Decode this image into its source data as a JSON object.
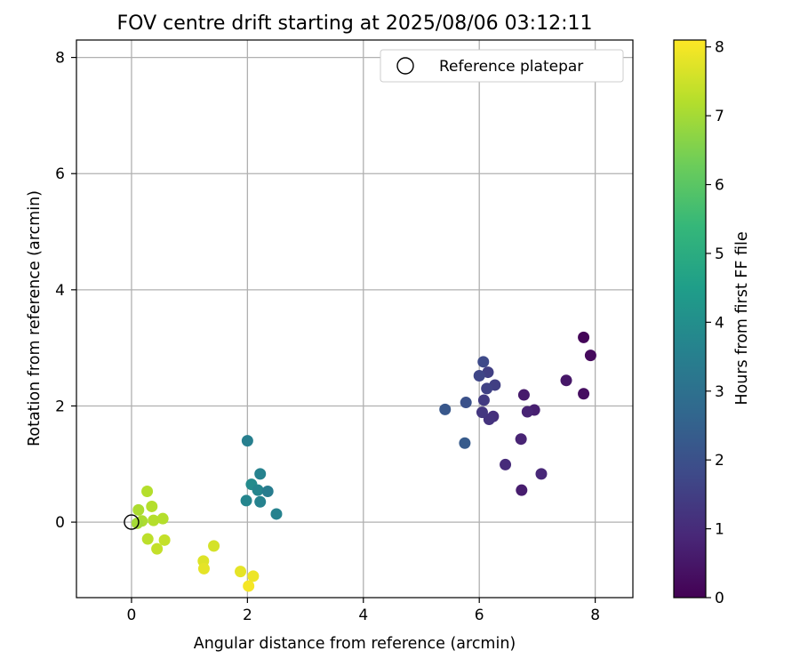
{
  "chart_data": {
    "type": "scatter",
    "title": "FOV centre drift starting at 2025/08/06 03:12:11",
    "xlabel": "Angular distance from reference (arcmin)",
    "ylabel": "Rotation from reference (arcmin)",
    "xlim": [
      -0.95,
      8.65
    ],
    "ylim": [
      -1.3,
      8.3
    ],
    "xticks": [
      0,
      2,
      4,
      6,
      8
    ],
    "yticks": [
      0,
      2,
      4,
      6,
      8
    ],
    "grid": true,
    "legend": {
      "position": "top-right",
      "entries": [
        "Reference platepar"
      ]
    },
    "reference_point": {
      "label": "Reference platepar",
      "x": 0,
      "y": 0,
      "marker": "open-circle"
    },
    "colorbar": {
      "label": "Hours from first FF file",
      "colormap": "viridis",
      "range": [
        0,
        8.1
      ],
      "ticks": [
        0,
        1,
        2,
        3,
        4,
        5,
        6,
        7,
        8
      ]
    },
    "points": [
      {
        "x": 7.8,
        "y": 3.18,
        "c": 0.1
      },
      {
        "x": 7.92,
        "y": 2.87,
        "c": 0.2
      },
      {
        "x": 7.8,
        "y": 2.21,
        "c": 0.3
      },
      {
        "x": 7.5,
        "y": 2.44,
        "c": 0.5
      },
      {
        "x": 6.77,
        "y": 2.19,
        "c": 0.6
      },
      {
        "x": 6.95,
        "y": 1.93,
        "c": 0.7
      },
      {
        "x": 6.83,
        "y": 1.9,
        "c": 0.8
      },
      {
        "x": 6.72,
        "y": 1.43,
        "c": 0.8
      },
      {
        "x": 6.73,
        "y": 0.55,
        "c": 0.65
      },
      {
        "x": 7.07,
        "y": 0.83,
        "c": 0.9
      },
      {
        "x": 6.45,
        "y": 0.99,
        "c": 1.0
      },
      {
        "x": 6.24,
        "y": 1.82,
        "c": 1.1
      },
      {
        "x": 6.17,
        "y": 1.77,
        "c": 1.2
      },
      {
        "x": 6.05,
        "y": 1.89,
        "c": 1.3
      },
      {
        "x": 6.08,
        "y": 2.1,
        "c": 1.4
      },
      {
        "x": 6.27,
        "y": 2.36,
        "c": 1.5
      },
      {
        "x": 6.13,
        "y": 2.3,
        "c": 1.6
      },
      {
        "x": 6.15,
        "y": 2.58,
        "c": 1.5
      },
      {
        "x": 6.0,
        "y": 2.52,
        "c": 1.7
      },
      {
        "x": 6.07,
        "y": 2.76,
        "c": 1.8
      },
      {
        "x": 5.77,
        "y": 2.06,
        "c": 2.0
      },
      {
        "x": 5.41,
        "y": 1.94,
        "c": 2.2
      },
      {
        "x": 5.75,
        "y": 1.36,
        "c": 2.3
      },
      {
        "x": 2.0,
        "y": 1.4,
        "c": 3.5
      },
      {
        "x": 2.22,
        "y": 0.83,
        "c": 3.6
      },
      {
        "x": 2.07,
        "y": 0.65,
        "c": 3.9
      },
      {
        "x": 2.18,
        "y": 0.55,
        "c": 3.7
      },
      {
        "x": 2.35,
        "y": 0.53,
        "c": 3.4
      },
      {
        "x": 1.98,
        "y": 0.37,
        "c": 3.7
      },
      {
        "x": 2.22,
        "y": 0.35,
        "c": 3.6
      },
      {
        "x": 2.5,
        "y": 0.14,
        "c": 3.6
      },
      {
        "x": 0.27,
        "y": 0.53,
        "c": 7.2
      },
      {
        "x": 0.35,
        "y": 0.27,
        "c": 7.2
      },
      {
        "x": 0.12,
        "y": 0.21,
        "c": 7.1
      },
      {
        "x": 0.54,
        "y": 0.06,
        "c": 7.2
      },
      {
        "x": 0.38,
        "y": 0.03,
        "c": 7.2
      },
      {
        "x": 0.18,
        "y": 0.02,
        "c": 7.1
      },
      {
        "x": 0.1,
        "y": -0.02,
        "c": 7.0
      },
      {
        "x": 0.28,
        "y": -0.29,
        "c": 7.3
      },
      {
        "x": 0.57,
        "y": -0.31,
        "c": 7.4
      },
      {
        "x": 0.44,
        "y": -0.46,
        "c": 7.4
      },
      {
        "x": 1.42,
        "y": -0.41,
        "c": 7.6
      },
      {
        "x": 1.24,
        "y": -0.67,
        "c": 7.7
      },
      {
        "x": 1.25,
        "y": -0.8,
        "c": 7.8
      },
      {
        "x": 1.88,
        "y": -0.85,
        "c": 7.8
      },
      {
        "x": 2.1,
        "y": -0.93,
        "c": 7.9
      },
      {
        "x": 2.02,
        "y": -1.1,
        "c": 8.0
      }
    ]
  }
}
